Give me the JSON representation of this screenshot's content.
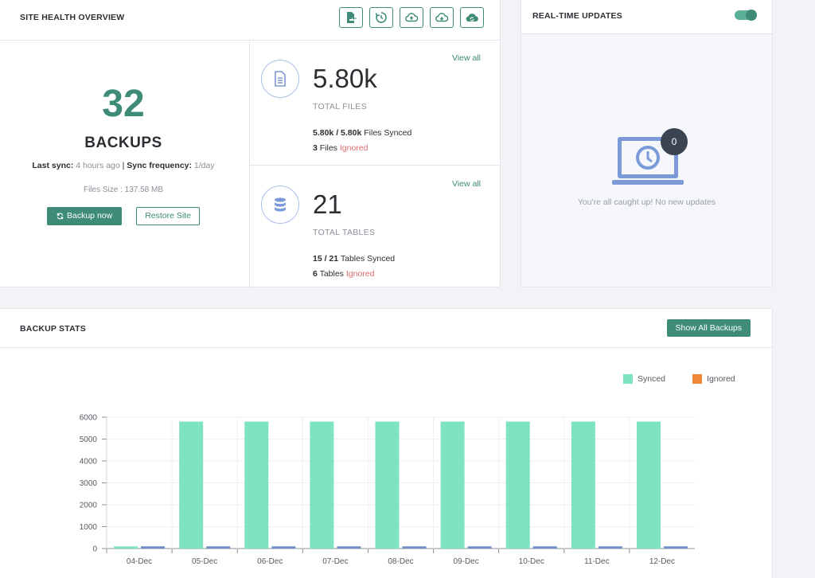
{
  "site_health": {
    "title": "SITE HEALTH OVERVIEW",
    "toolbar_icons": [
      "file-export-icon",
      "restore-icon",
      "cloud-upload-icon",
      "cloud-download-icon",
      "cloud-sync-icon"
    ],
    "backup_count": "32",
    "backup_label": "BACKUPS",
    "last_sync_label": "Last sync:",
    "last_sync_value": "4 hours ago",
    "separator": "|",
    "sync_frequency_label": "Sync frequency:",
    "sync_frequency_value": "1/day",
    "files_size": "Files Size : 137.58 MB",
    "backup_now_label": "Backup now",
    "restore_site_label": "Restore Site",
    "files": {
      "value": "5.80k",
      "label": "TOTAL FILES",
      "view_all": "View all",
      "synced_count": "5.80k / 5.80k",
      "synced_text": "Files Synced",
      "ignored_count": "3",
      "ignored_prefix": "Files",
      "ignored_word": "Ignored"
    },
    "tables": {
      "value": "21",
      "label": "TOTAL TABLES",
      "view_all": "View all",
      "synced_count": "15 / 21",
      "synced_text": "Tables Synced",
      "ignored_count": "6",
      "ignored_prefix": "Tables",
      "ignored_word": "Ignored"
    }
  },
  "realtime": {
    "title": "REAL-TIME UPDATES",
    "toggle_on": true,
    "update_count": "0",
    "empty_message": "You're all caught up! No new updates"
  },
  "backup_stats": {
    "title": "BACKUP STATS",
    "show_all_label": "Show All Backups"
  },
  "colors": {
    "accent": "#3e8b78",
    "synced": "#7de3c3",
    "ignored": "#f0883a",
    "secondary_bar": "#6f8fc6",
    "ignored_text": "#e06b6b"
  },
  "chart_data": {
    "type": "bar",
    "categories": [
      "04-Dec",
      "05-Dec",
      "06-Dec",
      "07-Dec",
      "08-Dec",
      "09-Dec",
      "10-Dec",
      "11-Dec",
      "12-Dec"
    ],
    "series": [
      {
        "name": "Synced",
        "values": [
          100,
          5800,
          5800,
          5800,
          5800,
          5800,
          5800,
          5800,
          5800
        ]
      },
      {
        "name": "Ignored",
        "values": [
          100,
          100,
          100,
          100,
          100,
          100,
          100,
          100,
          100
        ]
      }
    ],
    "y_ticks": [
      0,
      1000,
      2000,
      3000,
      4000,
      5000,
      6000
    ],
    "ylim": [
      0,
      6000
    ],
    "grid": true,
    "legend_position": "top-right"
  }
}
